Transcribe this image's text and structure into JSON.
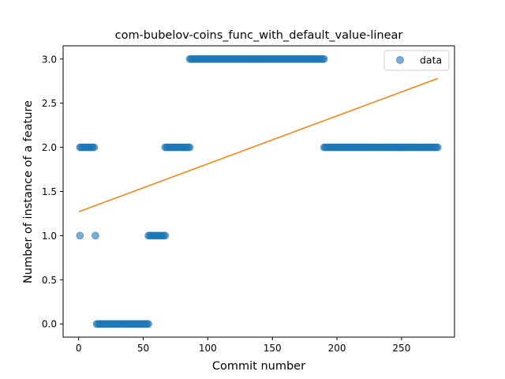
{
  "chart_data": {
    "type": "scatter",
    "title": "com-bubelov-coins_func_with_default_value-linear",
    "xlabel": "Commit number",
    "ylabel": "Number of instance of a feature",
    "xlim": [
      -12,
      291
    ],
    "ylim": [
      -0.15,
      3.15
    ],
    "xticks": [
      0,
      50,
      100,
      150,
      200,
      250
    ],
    "xtick_labels": [
      "0",
      "50",
      "100",
      "150",
      "200",
      "250"
    ],
    "yticks": [
      0.0,
      0.5,
      1.0,
      1.5,
      2.0,
      2.5,
      3.0
    ],
    "ytick_labels": [
      "0.0",
      "0.5",
      "1.0",
      "1.5",
      "2.0",
      "2.5",
      "3.0"
    ],
    "grid": false,
    "legend": {
      "position": "top-right",
      "entries": [
        "data"
      ]
    },
    "colors": {
      "data": "#1f77b4",
      "fit": "#ff7f0e"
    },
    "series": [
      {
        "name": "data",
        "kind": "scatter",
        "segments": [
          {
            "x_start": 1,
            "x_end": 1,
            "y": 1
          },
          {
            "x_start": 1,
            "x_end": 12,
            "y": 2
          },
          {
            "x_start": 13,
            "x_end": 13,
            "y": 1
          },
          {
            "x_start": 14,
            "x_end": 54,
            "y": 0
          },
          {
            "x_start": 54,
            "x_end": 67,
            "y": 1
          },
          {
            "x_start": 67,
            "x_end": 86,
            "y": 2
          },
          {
            "x_start": 86,
            "x_end": 190,
            "y": 3
          },
          {
            "x_start": 190,
            "x_end": 278,
            "y": 2
          }
        ]
      },
      {
        "kind": "line",
        "x": [
          0,
          278
        ],
        "y": [
          1.27,
          2.78
        ]
      }
    ]
  }
}
